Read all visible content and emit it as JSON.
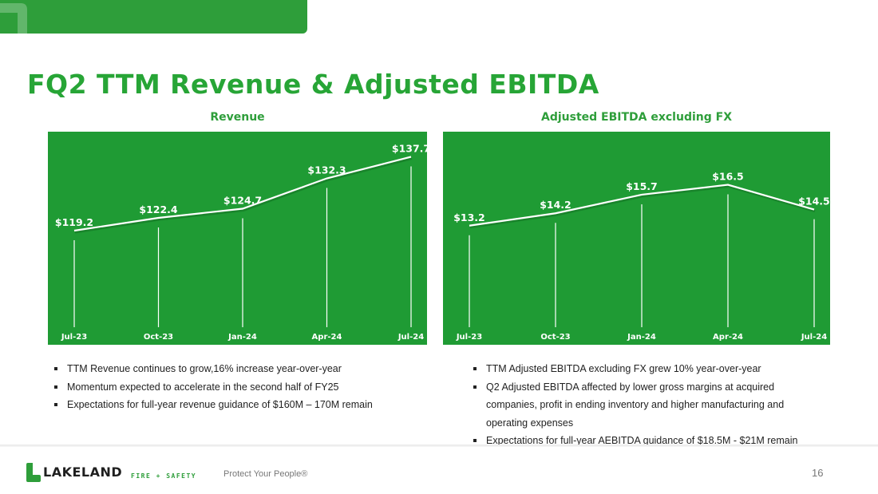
{
  "slide": {
    "title": "FQ2 TTM Revenue & Adjusted EBITDA",
    "brand_green": "#2e9e3a",
    "chart_bg": "#1f9b34"
  },
  "chart_data": [
    {
      "type": "line",
      "title": "Revenue",
      "categories": [
        "Jul-23",
        "Oct-23",
        "Jan-24",
        "Apr-24",
        "Jul-24"
      ],
      "values": [
        119.2,
        122.4,
        124.7,
        132.3,
        137.7
      ],
      "data_labels": [
        "$119.2",
        "$122.4",
        "$124.7",
        "$132.3",
        "$137.7"
      ],
      "ylim": [
        95,
        140
      ],
      "grid": false,
      "drop_lines": true
    },
    {
      "type": "line",
      "title": "Adjusted EBITDA excluding FX",
      "categories": [
        "Jul-23",
        "Oct-23",
        "Jan-24",
        "Apr-24",
        "Jul-24"
      ],
      "values": [
        13.2,
        14.2,
        15.7,
        16.5,
        14.5
      ],
      "data_labels": [
        "$13.2",
        "$14.2",
        "$15.7",
        "$16.5",
        "$14.5"
      ],
      "ylim": [
        5,
        19.5
      ],
      "grid": false,
      "drop_lines": true
    }
  ],
  "revenue_bullets": [
    "TTM Revenue continues to grow,16% increase year-over-year",
    "Momentum expected to accelerate in the second half of FY25",
    "Expectations for full-year revenue guidance of $160M – 170M remain"
  ],
  "ebitda_bullets": [
    "TTM Adjusted EBITDA excluding FX grew 10% year-over-year",
    "Q2 Adjusted EBITDA affected by lower gross margins at acquired companies, profit in ending inventory and higher manufacturing and operating expenses",
    "Expectations for full-year AEBITDA guidance of $18.5M - $21M remain"
  ],
  "footer": {
    "logo_word": "LAKELAND",
    "logo_sub": "FIRE + SAFETY",
    "tagline": "Protect Your People®",
    "page_number": "16"
  }
}
